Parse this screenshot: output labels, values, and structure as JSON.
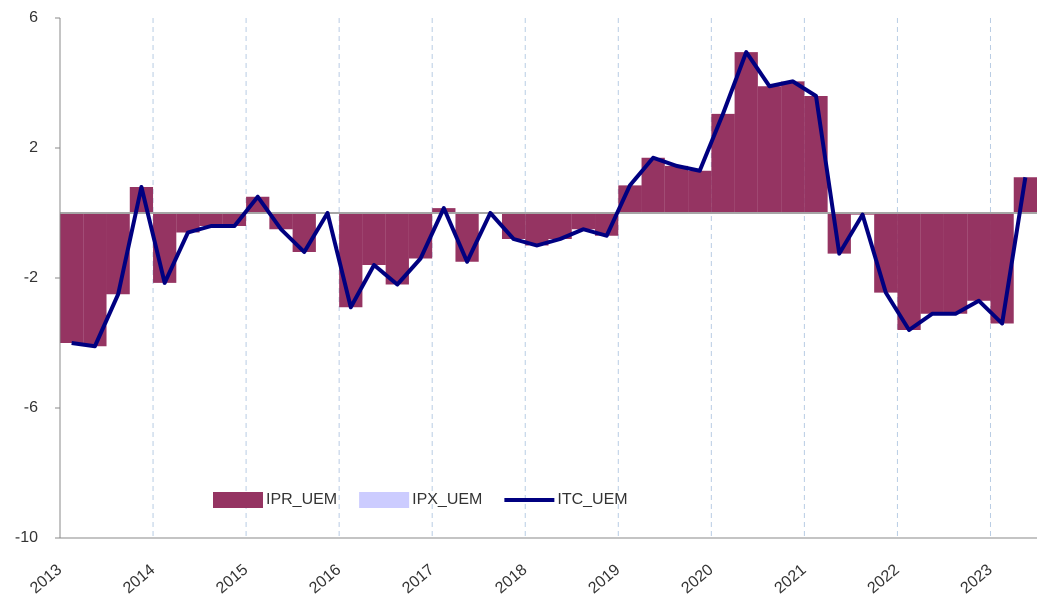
{
  "chart_data": {
    "type": "bar_line",
    "categories": [
      "2013",
      null,
      null,
      null,
      "2014",
      null,
      null,
      null,
      "2015",
      null,
      null,
      null,
      "2016",
      null,
      null,
      null,
      "2017",
      null,
      null,
      null,
      "2018",
      null,
      null,
      null,
      "2019",
      null,
      null,
      null,
      "2020",
      null,
      null,
      null,
      "2021",
      null,
      null,
      null,
      "2022",
      null,
      null,
      null,
      "2023",
      null
    ],
    "series": [
      {
        "name": "IPR_UEM",
        "color": "#953462",
        "kind": "bar",
        "values": [
          -4.0,
          -4.1,
          -2.5,
          0.8,
          -2.15,
          -0.6,
          -0.4,
          -0.4,
          0.5,
          -0.5,
          -1.2,
          0.0,
          -2.9,
          -1.6,
          -2.2,
          -1.4,
          0.15,
          -1.5,
          0.0,
          -0.8,
          -1.0,
          -0.8,
          -0.5,
          -0.7,
          0.85,
          1.7,
          1.45,
          1.3,
          3.05,
          4.95,
          3.9,
          4.05,
          3.6,
          -1.25,
          -0.05,
          -2.45,
          -3.6,
          -3.1,
          -3.1,
          -2.7,
          -3.4,
          1.1
        ]
      },
      {
        "name": "IPX_UEM",
        "color": "#ccccff",
        "kind": "bar",
        "values": [
          0,
          0,
          0,
          0,
          0,
          0,
          0,
          0,
          0,
          0,
          0,
          0,
          0,
          0,
          0,
          0,
          0,
          0,
          0,
          0,
          0,
          0,
          0,
          0,
          0,
          0,
          0,
          0,
          0,
          0,
          0,
          0,
          0,
          0,
          0,
          0,
          0,
          0,
          0,
          0,
          0,
          0
        ]
      },
      {
        "name": "ITC_UEM",
        "color": "#000080",
        "kind": "line",
        "values": [
          -4.0,
          -4.1,
          -2.5,
          0.8,
          -2.15,
          -0.6,
          -0.4,
          -0.4,
          0.5,
          -0.5,
          -1.2,
          0.0,
          -2.9,
          -1.6,
          -2.2,
          -1.4,
          0.15,
          -1.5,
          0.0,
          -0.8,
          -1.0,
          -0.8,
          -0.5,
          -0.7,
          0.85,
          1.7,
          1.45,
          1.3,
          3.05,
          4.95,
          3.9,
          4.05,
          3.6,
          -1.25,
          -0.05,
          -2.45,
          -3.6,
          -3.1,
          -3.1,
          -2.7,
          -3.4,
          1.1
        ]
      }
    ],
    "ylim": [
      -10,
      6
    ],
    "yticks": [
      6,
      2,
      -2,
      -6,
      -10
    ]
  }
}
